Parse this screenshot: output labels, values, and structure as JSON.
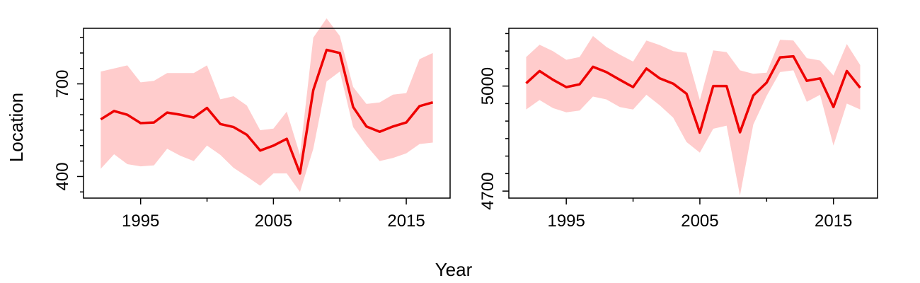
{
  "figure": {
    "xlabel": "Year",
    "ylabel": "Location",
    "colors": {
      "line": "#ee0000",
      "band": "#ffcccc",
      "axis": "#000000"
    }
  },
  "chart_data": [
    {
      "type": "line",
      "title": "",
      "xlabel": "Year",
      "ylabel": "Location",
      "xlim": [
        1990.7,
        2018.3
      ],
      "ylim": [
        330,
        880
      ],
      "x_ticks": [
        1995,
        2005,
        2015
      ],
      "x_minor_ticks": [
        2000,
        2010
      ],
      "y_ticks": [
        400,
        700
      ],
      "y_minor_ticks": [
        350,
        450,
        500,
        550,
        600,
        650,
        750,
        800,
        850
      ],
      "grid": false,
      "legend": "none",
      "x": [
        1992,
        1993,
        1994,
        1995,
        1996,
        1997,
        1998,
        1999,
        2000,
        2001,
        2002,
        2003,
        2004,
        2005,
        2006,
        2007,
        2008,
        2009,
        2010,
        2011,
        2012,
        2013,
        2014,
        2015,
        2016,
        2017
      ],
      "series": [
        {
          "values": [
            585,
            612,
            600,
            573,
            575,
            607,
            600,
            591,
            622,
            570,
            560,
            535,
            484,
            500,
            522,
            410,
            680,
            810,
            800,
            625,
            562,
            545,
            562,
            575,
            628,
            640
          ],
          "lower": [
            425,
            472,
            440,
            433,
            436,
            490,
            467,
            450,
            500,
            470,
            428,
            400,
            370,
            410,
            410,
            350,
            490,
            708,
            740,
            560,
            500,
            450,
            460,
            475,
            505,
            510
          ],
          "upper": [
            740,
            750,
            760,
            705,
            710,
            735,
            735,
            735,
            760,
            650,
            660,
            630,
            550,
            555,
            610,
            470,
            850,
            912,
            855,
            690,
            635,
            640,
            665,
            670,
            780,
            800
          ]
        }
      ]
    },
    {
      "type": "line",
      "title": "",
      "xlabel": "Year",
      "ylabel": "",
      "xlim": [
        1990.7,
        2018.3
      ],
      "ylim": [
        4680,
        5165
      ],
      "x_ticks": [
        1995,
        2005,
        2015
      ],
      "x_minor_ticks": [
        2000,
        2010
      ],
      "y_ticks": [
        4700,
        5000
      ],
      "y_minor_ticks": [
        4750,
        4800,
        4850,
        4900,
        4950,
        5050,
        5100,
        5150
      ],
      "grid": false,
      "legend": "none",
      "x": [
        1992,
        1993,
        1994,
        1995,
        1996,
        1997,
        1998,
        1999,
        2000,
        2001,
        2002,
        2003,
        2004,
        2005,
        2006,
        2007,
        2008,
        2009,
        2010,
        2011,
        2012,
        2013,
        2014,
        2015,
        2016,
        2017
      ],
      "series": [
        {
          "values": [
            5008,
            5043,
            5018,
            4997,
            5005,
            5055,
            5040,
            5018,
            4997,
            5050,
            5022,
            5007,
            4978,
            4867,
            5000,
            5000,
            4868,
            4973,
            5010,
            5082,
            5085,
            5015,
            5022,
            4940,
            5043,
            4995
          ],
          "lower": [
            4933,
            4960,
            4937,
            4925,
            4930,
            4970,
            4962,
            4940,
            4933,
            4975,
            4945,
            4910,
            4840,
            4810,
            4878,
            4887,
            4687,
            4890,
            4972,
            5040,
            5045,
            4955,
            4975,
            4830,
            4950,
            4933
          ],
          "upper": [
            5083,
            5118,
            5100,
            5075,
            5083,
            5143,
            5112,
            5090,
            5070,
            5130,
            5117,
            5100,
            5095,
            4960,
            5102,
            5097,
            5045,
            5035,
            5038,
            5132,
            5130,
            5080,
            5073,
            5030,
            5120,
            5060
          ]
        }
      ]
    }
  ]
}
